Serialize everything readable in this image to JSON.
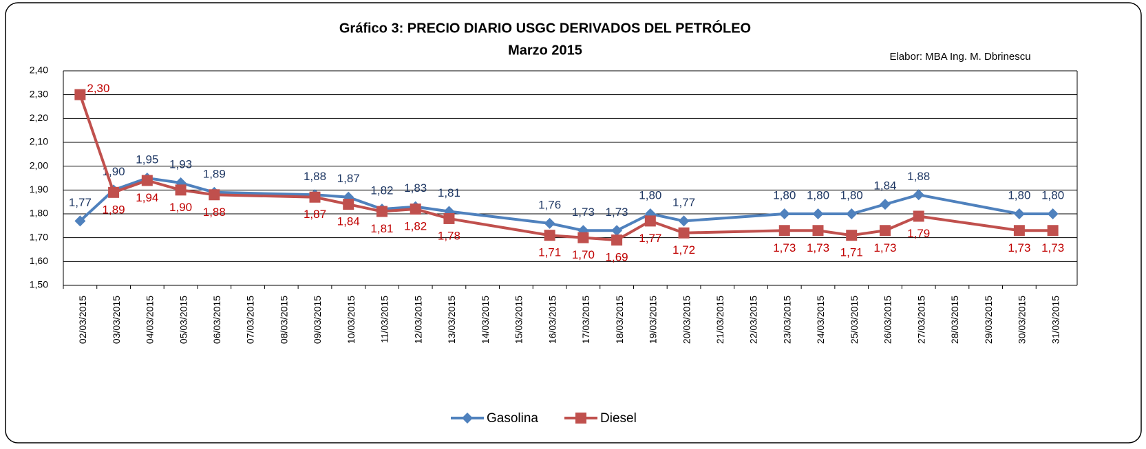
{
  "chart_data": {
    "type": "line",
    "title": "Gráfico 3: PRECIO DIARIO  USGC DERIVADOS DEL PETRÓLEO",
    "subtitle": "Marzo 2015",
    "annotation": "Elabor: MBA Ing. M. Dbrinescu",
    "categories": [
      "02/03/2015",
      "03/03/2015",
      "04/03/2015",
      "05/03/2015",
      "06/03/2015",
      "07/03/2015",
      "08/03/2015",
      "09/03/2015",
      "10/03/2015",
      "11/03/2015",
      "12/03/2015",
      "13/03/2015",
      "14/03/2015",
      "15/03/2015",
      "16/03/2015",
      "17/03/2015",
      "18/03/2015",
      "19/03/2015",
      "20/03/2015",
      "21/03/2015",
      "22/03/2015",
      "23/03/2015",
      "24/03/2015",
      "25/03/2015",
      "26/03/2015",
      "27/03/2015",
      "28/03/2015",
      "29/03/2015",
      "30/03/2015",
      "31/03/2015"
    ],
    "series": [
      {
        "name": "Gasolina",
        "color": "#4f81bd",
        "marker": "diamond",
        "x": [
          "02/03/2015",
          "03/03/2015",
          "04/03/2015",
          "05/03/2015",
          "06/03/2015",
          "09/03/2015",
          "10/03/2015",
          "11/03/2015",
          "12/03/2015",
          "13/03/2015",
          "16/03/2015",
          "17/03/2015",
          "18/03/2015",
          "19/03/2015",
          "20/03/2015",
          "23/03/2015",
          "24/03/2015",
          "25/03/2015",
          "26/03/2015",
          "27/03/2015",
          "30/03/2015",
          "31/03/2015"
        ],
        "values": [
          1.77,
          1.9,
          1.95,
          1.93,
          1.89,
          1.88,
          1.87,
          1.82,
          1.83,
          1.81,
          1.76,
          1.73,
          1.73,
          1.8,
          1.77,
          1.8,
          1.8,
          1.8,
          1.84,
          1.88,
          1.8,
          1.8
        ],
        "value_labels": [
          "1,77",
          "1,90",
          "1,95",
          "1,93",
          "1,89",
          "1,88",
          "1,87",
          "1,82",
          "1,83",
          "1,81",
          "1,76",
          "1,73",
          "1,73",
          "1,80",
          "1,77",
          "1,80",
          "1,80",
          "1,80",
          "1,84",
          "1,88",
          "1,80",
          "1,80"
        ]
      },
      {
        "name": "Diesel",
        "color": "#c0504d",
        "marker": "square",
        "x": [
          "02/03/2015",
          "03/03/2015",
          "04/03/2015",
          "05/03/2015",
          "06/03/2015",
          "09/03/2015",
          "10/03/2015",
          "11/03/2015",
          "12/03/2015",
          "13/03/2015",
          "16/03/2015",
          "17/03/2015",
          "18/03/2015",
          "19/03/2015",
          "20/03/2015",
          "23/03/2015",
          "24/03/2015",
          "25/03/2015",
          "26/03/2015",
          "27/03/2015",
          "30/03/2015",
          "31/03/2015"
        ],
        "values": [
          2.3,
          1.89,
          1.94,
          1.9,
          1.88,
          1.87,
          1.84,
          1.81,
          1.82,
          1.78,
          1.71,
          1.7,
          1.69,
          1.77,
          1.72,
          1.73,
          1.73,
          1.71,
          1.73,
          1.79,
          1.73,
          1.73
        ],
        "value_labels": [
          "2,30",
          "1,89",
          "1,94",
          "1,90",
          "1,88",
          "1,87",
          "1,84",
          "1,81",
          "1,82",
          "1,78",
          "1,71",
          "1,70",
          "1,69",
          "1,77",
          "1,72",
          "1,73",
          "1,73",
          "1,71",
          "1,73",
          "1,79",
          "1,73",
          "1,73"
        ]
      }
    ],
    "ylim": [
      1.5,
      2.4
    ],
    "yticks": [
      {
        "value": 1.5,
        "label": "1,50"
      },
      {
        "value": 1.6,
        "label": "1,60"
      },
      {
        "value": 1.7,
        "label": "1,70"
      },
      {
        "value": 1.8,
        "label": "1,80"
      },
      {
        "value": 1.9,
        "label": "1,90"
      },
      {
        "value": 2.0,
        "label": "2,00"
      },
      {
        "value": 2.1,
        "label": "2,10"
      },
      {
        "value": 2.2,
        "label": "2,20"
      },
      {
        "value": 2.3,
        "label": "2,30"
      },
      {
        "value": 2.4,
        "label": "2,40"
      }
    ],
    "grid": true,
    "legend": "bottom"
  }
}
